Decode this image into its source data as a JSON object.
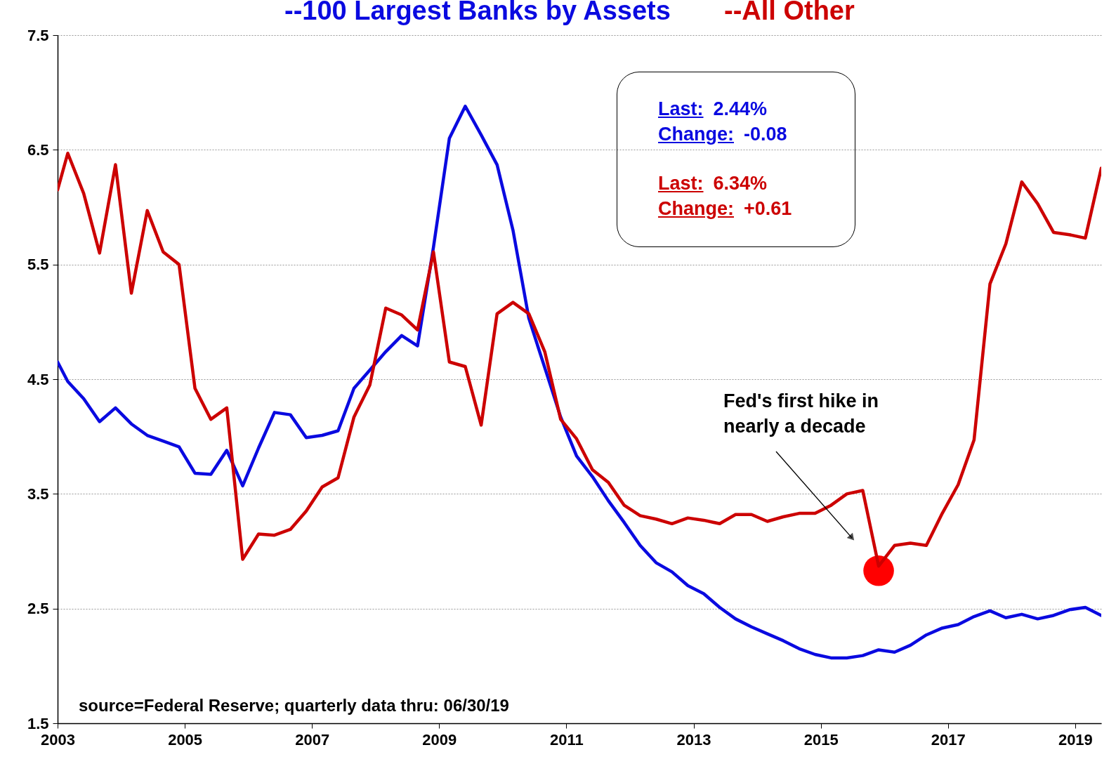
{
  "chart_data": {
    "type": "line",
    "x": [
      2003,
      2003.16,
      2003.41,
      2003.66,
      2003.91,
      2004.16,
      2004.41,
      2004.66,
      2004.91,
      2005.16,
      2005.41,
      2005.66,
      2005.91,
      2006.16,
      2006.41,
      2006.66,
      2006.91,
      2007.16,
      2007.41,
      2007.66,
      2007.91,
      2008.16,
      2008.41,
      2008.66,
      2008.91,
      2009.16,
      2009.41,
      2009.66,
      2009.91,
      2010.16,
      2010.41,
      2010.66,
      2010.91,
      2011.16,
      2011.41,
      2011.66,
      2011.91,
      2012.16,
      2012.41,
      2012.66,
      2012.91,
      2013.16,
      2013.41,
      2013.66,
      2013.91,
      2014.16,
      2014.41,
      2014.66,
      2014.91,
      2015.16,
      2015.41,
      2015.66,
      2015.91,
      2016.16,
      2016.41,
      2016.66,
      2016.91,
      2017.16,
      2017.41,
      2017.66,
      2017.91,
      2018.16,
      2018.41,
      2018.66,
      2018.91,
      2019.16,
      2019.41
    ],
    "series": [
      {
        "name": "--100 Largest Banks by Assets",
        "color": "#0a0ae0",
        "values": [
          4.65,
          4.48,
          4.33,
          4.13,
          4.25,
          4.11,
          4.01,
          3.96,
          3.91,
          3.68,
          3.67,
          3.88,
          3.57,
          3.9,
          4.21,
          4.19,
          3.99,
          4.01,
          4.05,
          4.42,
          4.58,
          4.74,
          4.88,
          4.79,
          5.65,
          6.6,
          6.88,
          6.63,
          6.37,
          5.8,
          5.03,
          4.6,
          4.17,
          3.83,
          3.65,
          3.44,
          3.25,
          3.05,
          2.9,
          2.82,
          2.7,
          2.63,
          2.51,
          2.41,
          2.34,
          2.28,
          2.22,
          2.15,
          2.1,
          2.07,
          2.07,
          2.09,
          2.14,
          2.12,
          2.18,
          2.27,
          2.33,
          2.36,
          2.43,
          2.48,
          2.42,
          2.45,
          2.41,
          2.44,
          2.49,
          2.51,
          2.44
        ]
      },
      {
        "name": "--All Other",
        "color": "#cc0000",
        "values": [
          6.15,
          6.47,
          6.12,
          5.6,
          6.37,
          5.25,
          5.97,
          5.61,
          5.5,
          4.42,
          4.15,
          4.25,
          2.93,
          3.15,
          3.14,
          3.19,
          3.35,
          3.56,
          3.64,
          4.17,
          4.45,
          5.12,
          5.06,
          4.93,
          5.61,
          4.65,
          4.61,
          4.1,
          5.07,
          5.17,
          5.07,
          4.74,
          4.15,
          3.98,
          3.71,
          3.6,
          3.4,
          3.31,
          3.28,
          3.24,
          3.29,
          3.27,
          3.24,
          3.32,
          3.32,
          3.26,
          3.3,
          3.33,
          3.33,
          3.4,
          3.5,
          3.53,
          2.87,
          3.05,
          3.07,
          3.05,
          3.33,
          3.58,
          3.97,
          5.33,
          5.68,
          6.22,
          6.03,
          5.78,
          5.76,
          5.73,
          6.34
        ]
      },
      {
        "type": "scatter",
        "color": "#ff0000",
        "x": [
          2015.91
        ],
        "values": [
          2.83
        ]
      }
    ],
    "xlim": [
      2003,
      2019.41
    ],
    "xticks": [
      2003,
      2005,
      2007,
      2009,
      2011,
      2013,
      2015,
      2017,
      2019
    ],
    "ylim": [
      1.5,
      7.5
    ],
    "yticks": [
      1.5,
      2.5,
      3.5,
      4.5,
      5.5,
      6.5,
      7.5
    ],
    "grid": "y",
    "legend": "top",
    "annotations": [
      "Last: 2.44%",
      "Change: -0.08",
      "Last: 6.34%",
      "Change: +0.61",
      "Fed's first hike in nearly a decade",
      "source=Federal Reserve; quarterly data thru:  06/30/19"
    ]
  }
}
